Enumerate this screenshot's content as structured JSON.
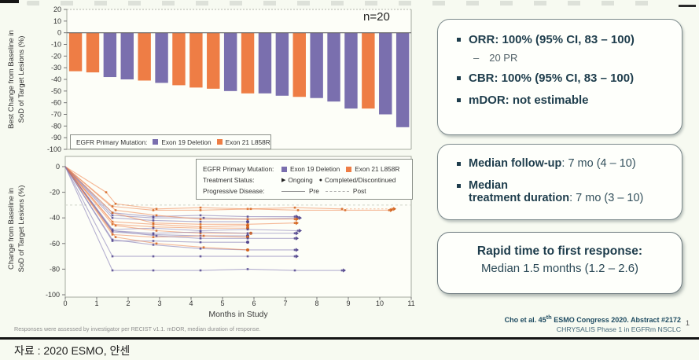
{
  "colors": {
    "exon19_bar": "#7a6fae",
    "exon21_bar": "#ee7d45",
    "exon19_marker": "#55498f",
    "exon21_marker": "#d4641f",
    "axis": "#a5a99f",
    "zero_line": "#666666",
    "reference_line": "#cfd4c7"
  },
  "chart_data": [
    {
      "type": "bar",
      "annotation": "n=20",
      "ylabel_lines": [
        "Best Change from Baseline in",
        "SoD of Target Lesions (%)"
      ],
      "ylim": [
        -100,
        20
      ],
      "yticks": [
        20,
        10,
        0,
        -10,
        -20,
        -30,
        -40,
        -50,
        -60,
        -70,
        -80,
        -90,
        -100
      ],
      "legend": {
        "title": "EGFR Primary Mutation:",
        "items": [
          {
            "label": "Exon 19 Deletion",
            "mutation": "exon19"
          },
          {
            "label": "Exon 21 L858R",
            "mutation": "exon21"
          }
        ]
      },
      "bars": [
        {
          "value": -33,
          "mutation": "exon21"
        },
        {
          "value": -34,
          "mutation": "exon21"
        },
        {
          "value": -38,
          "mutation": "exon19"
        },
        {
          "value": -40,
          "mutation": "exon19"
        },
        {
          "value": -41,
          "mutation": "exon21"
        },
        {
          "value": -43,
          "mutation": "exon19"
        },
        {
          "value": -45,
          "mutation": "exon21"
        },
        {
          "value": -47,
          "mutation": "exon21"
        },
        {
          "value": -48,
          "mutation": "exon21"
        },
        {
          "value": -50,
          "mutation": "exon19"
        },
        {
          "value": -52,
          "mutation": "exon21"
        },
        {
          "value": -52,
          "mutation": "exon19"
        },
        {
          "value": -54,
          "mutation": "exon19"
        },
        {
          "value": -55,
          "mutation": "exon21"
        },
        {
          "value": -56,
          "mutation": "exon19"
        },
        {
          "value": -59,
          "mutation": "exon19"
        },
        {
          "value": -65,
          "mutation": "exon19"
        },
        {
          "value": -65,
          "mutation": "exon21"
        },
        {
          "value": -70,
          "mutation": "exon19"
        },
        {
          "value": -81,
          "mutation": "exon19"
        }
      ]
    },
    {
      "type": "line",
      "xlabel": "Months in Study",
      "ylabel_lines": [
        "Change from Baseline in",
        "SoD of Target Lesions (%)"
      ],
      "xlim": [
        0,
        11
      ],
      "ylim": [
        -100,
        8
      ],
      "xticks": [
        0,
        1,
        2,
        3,
        4,
        5,
        6,
        7,
        8,
        9,
        10,
        11
      ],
      "yticks": [
        0,
        -20,
        -40,
        -60,
        -80,
        -100
      ],
      "reference_line_y": -30,
      "legend": {
        "rows": [
          {
            "label": "EGFR Primary Mutation:",
            "items": [
              {
                "label": "Exon 19 Deletion",
                "mutation": "exon19"
              },
              {
                "label": "Exon 21 L858R",
                "mutation": "exon21"
              }
            ]
          },
          {
            "label": "Treatment Status:",
            "items": [
              {
                "marker": "▶",
                "label": "Ongoing"
              },
              {
                "marker": "●",
                "label": "Completed/Discontinued"
              }
            ]
          },
          {
            "label": "Progressive Disease:",
            "items": [
              {
                "style": "solid",
                "label": "Pre"
              },
              {
                "style": "dashed",
                "label": "Post"
              }
            ]
          }
        ]
      },
      "series": [
        {
          "mutation": "exon21",
          "status": "ongoing",
          "post_start_index": 7,
          "points": [
            [
              0,
              0
            ],
            [
              1.3,
              -20
            ],
            [
              1.6,
              -29
            ],
            [
              2.9,
              -33
            ],
            [
              4.3,
              -32
            ],
            [
              5.8,
              -33
            ],
            [
              7.3,
              -32
            ],
            [
              8.8,
              -33
            ],
            [
              10.4,
              -33
            ]
          ]
        },
        {
          "mutation": "exon21",
          "status": "ongoing",
          "points": [
            [
              0,
              0
            ],
            [
              1.5,
              -31
            ],
            [
              2.8,
              -34
            ],
            [
              4.3,
              -34
            ],
            [
              5.9,
              -33
            ],
            [
              7.4,
              -34
            ],
            [
              8.9,
              -34
            ],
            [
              10.3,
              -34
            ]
          ]
        },
        {
          "mutation": "exon19",
          "status": "ongoing",
          "points": [
            [
              0,
              0
            ],
            [
              1.5,
              -36
            ],
            [
              2.8,
              -39
            ],
            [
              4.3,
              -38
            ],
            [
              5.8,
              -39
            ],
            [
              7.3,
              -39
            ]
          ]
        },
        {
          "mutation": "exon19",
          "status": "ongoing",
          "points": [
            [
              0,
              0
            ],
            [
              1.5,
              -38
            ],
            [
              2.8,
              -40
            ],
            [
              4.4,
              -40
            ],
            [
              5.8,
              -41
            ],
            [
              7.4,
              -40
            ]
          ]
        },
        {
          "mutation": "exon21",
          "status": "ongoing",
          "points": [
            [
              0,
              0
            ],
            [
              1.6,
              -34
            ],
            [
              2.9,
              -38
            ],
            [
              4.3,
              -41
            ],
            [
              5.8,
              -41
            ],
            [
              7.3,
              -41
            ]
          ]
        },
        {
          "mutation": "exon19",
          "status": "completed",
          "points": [
            [
              0,
              0
            ],
            [
              1.5,
              -40
            ],
            [
              2.8,
              -42
            ],
            [
              4.3,
              -43
            ],
            [
              5.8,
              -43
            ]
          ]
        },
        {
          "mutation": "exon21",
          "status": "ongoing",
          "points": [
            [
              0,
              0
            ],
            [
              1.5,
              -36
            ],
            [
              2.8,
              -44
            ],
            [
              4.3,
              -45
            ],
            [
              5.8,
              -45
            ],
            [
              7.3,
              -44
            ]
          ]
        },
        {
          "mutation": "exon21",
          "status": "completed",
          "points": [
            [
              0,
              0
            ],
            [
              1.5,
              -43
            ],
            [
              2.8,
              -45
            ],
            [
              4.3,
              -47
            ],
            [
              5.8,
              -46
            ]
          ]
        },
        {
          "mutation": "exon21",
          "status": "completed",
          "points": [
            [
              0,
              0
            ],
            [
              1.5,
              -45
            ],
            [
              2.8,
              -47
            ],
            [
              4.3,
              -48
            ],
            [
              5.8,
              -48
            ]
          ]
        },
        {
          "mutation": "exon19",
          "status": "ongoing",
          "points": [
            [
              0,
              0
            ],
            [
              1.5,
              -49
            ],
            [
              2.8,
              -48
            ],
            [
              4.3,
              -50
            ],
            [
              5.8,
              -49
            ],
            [
              7.4,
              -50
            ]
          ]
        },
        {
          "mutation": "exon21",
          "status": "completed",
          "points": [
            [
              0,
              0
            ],
            [
              1.6,
              -46
            ],
            [
              2.9,
              -50
            ],
            [
              4.3,
              -52
            ],
            [
              5.9,
              -52
            ]
          ]
        },
        {
          "mutation": "exon19",
          "status": "ongoing",
          "points": [
            [
              0,
              0
            ],
            [
              1.5,
              -50
            ],
            [
              2.8,
              -52
            ],
            [
              4.3,
              -51
            ],
            [
              5.8,
              -52
            ],
            [
              7.3,
              -52
            ]
          ]
        },
        {
          "mutation": "exon19",
          "status": "completed",
          "points": [
            [
              0,
              0
            ],
            [
              1.5,
              -51
            ],
            [
              2.8,
              -53
            ],
            [
              4.3,
              -54
            ],
            [
              5.8,
              -54
            ]
          ]
        },
        {
          "mutation": "exon21",
          "status": "completed",
          "points": [
            [
              0,
              0
            ],
            [
              1.5,
              -53
            ],
            [
              2.8,
              -55
            ],
            [
              4.4,
              -54
            ],
            [
              5.8,
              -55
            ]
          ]
        },
        {
          "mutation": "exon19",
          "status": "ongoing",
          "points": [
            [
              0,
              0
            ],
            [
              1.5,
              -50
            ],
            [
              2.9,
              -54
            ],
            [
              4.3,
              -56
            ],
            [
              5.8,
              -56
            ],
            [
              7.3,
              -56
            ]
          ]
        },
        {
          "mutation": "exon19",
          "status": "completed",
          "points": [
            [
              0,
              0
            ],
            [
              1.5,
              -58
            ],
            [
              2.8,
              -58
            ],
            [
              4.3,
              -59
            ],
            [
              5.8,
              -59
            ]
          ]
        },
        {
          "mutation": "exon19",
          "status": "ongoing",
          "points": [
            [
              0,
              0
            ],
            [
              1.5,
              -57
            ],
            [
              2.8,
              -61
            ],
            [
              4.3,
              -64
            ],
            [
              5.8,
              -65
            ],
            [
              7.3,
              -65
            ]
          ]
        },
        {
          "mutation": "exon21",
          "status": "completed",
          "points": [
            [
              0,
              0
            ],
            [
              1.6,
              -55
            ],
            [
              2.9,
              -60
            ],
            [
              4.4,
              -63
            ],
            [
              5.8,
              -65
            ]
          ]
        },
        {
          "mutation": "exon19",
          "status": "ongoing",
          "points": [
            [
              0,
              0
            ],
            [
              1.5,
              -70
            ],
            [
              2.8,
              -70
            ],
            [
              4.3,
              -70
            ],
            [
              5.8,
              -70
            ],
            [
              7.3,
              -70
            ]
          ]
        },
        {
          "mutation": "exon19",
          "status": "ongoing",
          "points": [
            [
              0,
              0
            ],
            [
              1.5,
              -81
            ],
            [
              2.8,
              -81
            ],
            [
              4.3,
              -81
            ],
            [
              5.8,
              -80
            ],
            [
              7.3,
              -81
            ],
            [
              8.8,
              -81
            ]
          ]
        }
      ]
    }
  ],
  "right_panel": {
    "box1": {
      "line1": "ORR: 100% (95% CI, 83 – 100)",
      "sub_dash": "–",
      "sub_text": "20 PR",
      "line2": "CBR: 100% (95% CI, 83 – 100)",
      "line3": "mDOR: not estimable"
    },
    "box2": {
      "line1_bold": "Median follow-up",
      "line1_rest": ": 7 mo (4 – 10)",
      "line2_bold_a": "Median",
      "line2_bold_b": "treatment duration",
      "line2_rest": ": 7 mo (3 – 10)"
    },
    "box3": {
      "title": "Rapid time to first response:",
      "text": "Median 1.5 months (1.2 – 2.6)"
    }
  },
  "footer": {
    "citation_prefix": "Cho et al. 45",
    "citation_sup": "th",
    "citation_suffix": " ESMO Congress 2020. Abstract #2172",
    "citation_line2": "CHRYSALIS Phase 1 in EGFRm NSCLC",
    "page": "1",
    "footnote": "Responses were assessed by investigator per RECIST v1.1. mDOR, median duration of response.",
    "source": "자료 : 2020 ESMO, 얀센"
  }
}
